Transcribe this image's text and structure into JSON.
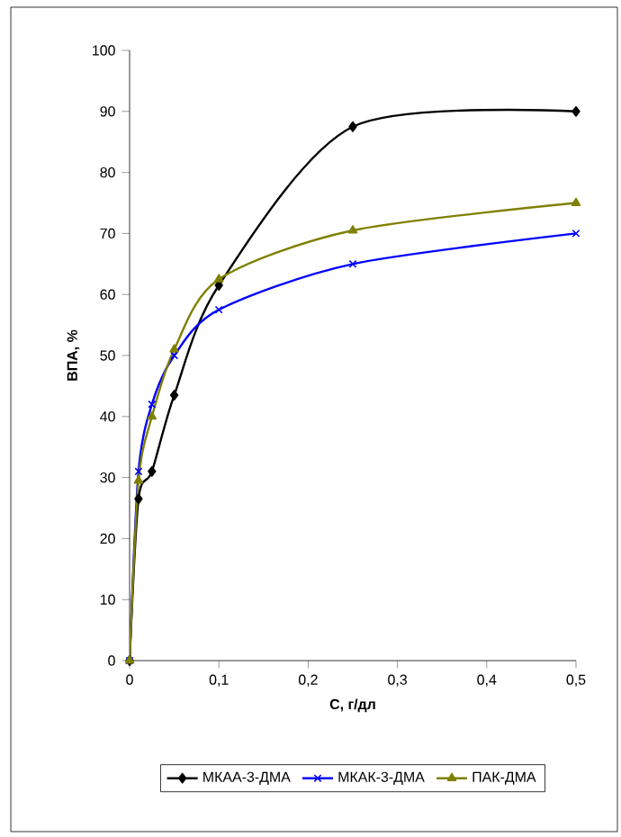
{
  "chart_data": {
    "type": "line",
    "xlabel": "С, г/дл",
    "ylabel": "ВПА, %",
    "x": [
      0,
      0.01,
      0.025,
      0.05,
      0.1,
      0.25,
      0.5
    ],
    "series": [
      {
        "name": "МКАА-3-ДМА",
        "color": "#000000",
        "marker": "diamond",
        "values": [
          0,
          26.5,
          31,
          43.5,
          61.5,
          87.5,
          90
        ]
      },
      {
        "name": "МКАК-3-ДМА",
        "color": "#0000ff",
        "marker": "cross",
        "values": [
          0,
          31,
          42,
          50,
          57.5,
          65,
          70
        ]
      },
      {
        "name": "ПАК-ДМА",
        "color": "#808000",
        "marker": "triangle",
        "values": [
          0,
          29.5,
          40,
          51,
          62.5,
          70.5,
          75
        ]
      }
    ],
    "xlim": [
      0,
      0.5
    ],
    "ylim": [
      0,
      100
    ],
    "xticks": [
      0,
      {
        "value": 0.1,
        "label": "0,1"
      },
      {
        "value": 0.2,
        "label": "0,2"
      },
      {
        "value": 0.3,
        "label": "0,3"
      },
      {
        "value": 0.4,
        "label": "0,4"
      },
      {
        "value": 0.5,
        "label": "0,5"
      }
    ],
    "yticks": [
      0,
      10,
      20,
      30,
      40,
      50,
      60,
      70,
      80,
      90,
      100
    ],
    "grid": false,
    "legend": "bottom"
  }
}
